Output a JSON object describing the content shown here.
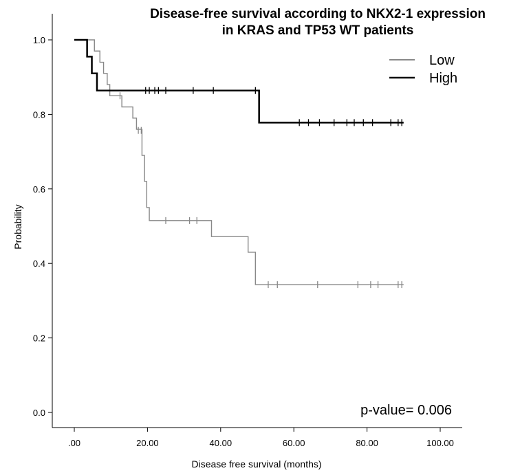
{
  "chart_data": {
    "type": "line",
    "title": "Disease-free survival according to NKX2-1 expression",
    "subtitle": "in KRAS and TP53 WT patients",
    "xlabel": "Disease free survival (months)",
    "ylabel": "Probability",
    "xlim": [
      0,
      100
    ],
    "ylim": [
      0,
      1
    ],
    "x_ticks": [
      ".00",
      "20.00",
      "40.00",
      "60.00",
      "80.00",
      "100.00"
    ],
    "x_tick_values": [
      0,
      20,
      40,
      60,
      80,
      100
    ],
    "y_ticks": [
      "0.0",
      "0.2",
      "0.4",
      "0.6",
      "0.8",
      "1.0"
    ],
    "y_tick_values": [
      0,
      0.2,
      0.4,
      0.6,
      0.8,
      1.0
    ],
    "grid": false,
    "legend_position": "top-right",
    "annotation": "p-value= 0.006",
    "series": [
      {
        "name": "Low",
        "color": "#888888",
        "steps": [
          [
            0,
            1.0
          ],
          [
            5.5,
            0.97
          ],
          [
            7,
            0.94
          ],
          [
            8,
            0.91
          ],
          [
            9,
            0.88
          ],
          [
            9.7,
            0.85
          ],
          [
            13,
            0.82
          ],
          [
            16,
            0.79
          ],
          [
            17,
            0.76
          ],
          [
            18.5,
            0.69
          ],
          [
            19.2,
            0.62
          ],
          [
            19.8,
            0.55
          ],
          [
            20.5,
            0.515
          ],
          [
            37.5,
            0.472
          ],
          [
            47.5,
            0.43
          ],
          [
            49.5,
            0.343
          ],
          [
            90,
            0.343
          ]
        ],
        "censored": [
          [
            12.5,
            0.85
          ],
          [
            17.5,
            0.757
          ],
          [
            18.3,
            0.757
          ],
          [
            25,
            0.515
          ],
          [
            31.5,
            0.515
          ],
          [
            33.5,
            0.515
          ],
          [
            53,
            0.343
          ],
          [
            55.5,
            0.343
          ],
          [
            66.5,
            0.343
          ],
          [
            77.5,
            0.343
          ],
          [
            81,
            0.343
          ],
          [
            83,
            0.343
          ],
          [
            88.5,
            0.343
          ],
          [
            89.5,
            0.343
          ]
        ]
      },
      {
        "name": "High",
        "color": "#000000",
        "steps": [
          [
            0,
            1.0
          ],
          [
            3.5,
            0.955
          ],
          [
            4.8,
            0.91
          ],
          [
            6.2,
            0.864
          ],
          [
            50.5,
            0.778
          ],
          [
            90,
            0.778
          ]
        ],
        "censored": [
          [
            19.5,
            0.864
          ],
          [
            20.5,
            0.864
          ],
          [
            22,
            0.864
          ],
          [
            23,
            0.864
          ],
          [
            25,
            0.864
          ],
          [
            32.5,
            0.864
          ],
          [
            38,
            0.864
          ],
          [
            49.5,
            0.864
          ],
          [
            61.5,
            0.778
          ],
          [
            64,
            0.778
          ],
          [
            67,
            0.778
          ],
          [
            71,
            0.778
          ],
          [
            74.5,
            0.778
          ],
          [
            76.5,
            0.778
          ],
          [
            79,
            0.778
          ],
          [
            81.5,
            0.778
          ],
          [
            86.5,
            0.778
          ],
          [
            88.5,
            0.778
          ],
          [
            89.5,
            0.778
          ]
        ]
      }
    ]
  }
}
